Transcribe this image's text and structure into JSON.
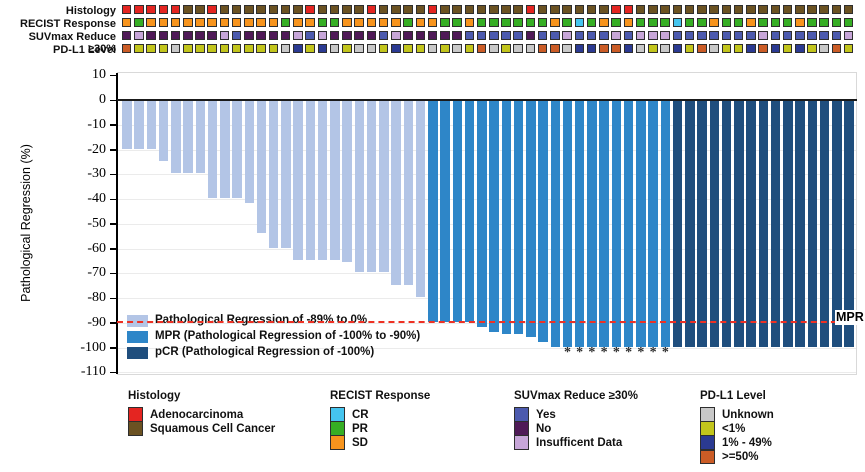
{
  "tracks": {
    "rows": [
      {
        "label": "Histology",
        "cells": [
          "A",
          "A",
          "A",
          "A",
          "A",
          "S",
          "S",
          "A",
          "S",
          "S",
          "S",
          "S",
          "S",
          "S",
          "S",
          "A",
          "S",
          "S",
          "S",
          "S",
          "A",
          "S",
          "S",
          "S",
          "S",
          "A",
          "S",
          "S",
          "S",
          "S",
          "S",
          "S",
          "S",
          "A",
          "S",
          "S",
          "S",
          "S",
          "S",
          "S",
          "A",
          "A",
          "S",
          "S",
          "S",
          "S",
          "S",
          "S",
          "S",
          "S",
          "S",
          "S",
          "S",
          "S",
          "S",
          "S",
          "S",
          "S",
          "S",
          "S"
        ]
      },
      {
        "label": "RECIST Response",
        "cells": [
          "SD",
          "PR",
          "SD",
          "SD",
          "SD",
          "SD",
          "SD",
          "SD",
          "SD",
          "SD",
          "SD",
          "SD",
          "SD",
          "PR",
          "SD",
          "SD",
          "PR",
          "PR",
          "SD",
          "SD",
          "SD",
          "SD",
          "SD",
          "PR",
          "SD",
          "SD",
          "PR",
          "PR",
          "SD",
          "PR",
          "PR",
          "PR",
          "PR",
          "PR",
          "PR",
          "SD",
          "PR",
          "CR",
          "PR",
          "SD",
          "PR",
          "SD",
          "PR",
          "PR",
          "PR",
          "CR",
          "PR",
          "PR",
          "SD",
          "PR",
          "PR",
          "SD",
          "PR",
          "PR",
          "PR",
          "SD",
          "PR",
          "PR",
          "PR",
          "PR"
        ]
      },
      {
        "label": "SUVmax Reduce ≥30%",
        "cells": [
          "N",
          "I",
          "N",
          "N",
          "N",
          "N",
          "N",
          "N",
          "I",
          "Y",
          "N",
          "N",
          "N",
          "N",
          "I",
          "Y",
          "I",
          "N",
          "N",
          "N",
          "N",
          "Y",
          "I",
          "N",
          "N",
          "N",
          "N",
          "N",
          "Y",
          "Y",
          "Y",
          "Y",
          "Y",
          "N",
          "Y",
          "Y",
          "I",
          "Y",
          "Y",
          "Y",
          "I",
          "Y",
          "I",
          "I",
          "I",
          "Y",
          "Y",
          "Y",
          "Y",
          "Y",
          "Y",
          "Y",
          "I",
          "Y",
          "Y",
          "Y",
          "Y",
          "Y",
          "Y",
          "I"
        ]
      },
      {
        "label": "PD-L1 Level",
        "cells": [
          "H",
          "L",
          "L",
          "L",
          "U",
          "L",
          "L",
          "L",
          "L",
          "L",
          "L",
          "L",
          "L",
          "U",
          "B",
          "L",
          "B",
          "U",
          "L",
          "U",
          "U",
          "L",
          "B",
          "L",
          "L",
          "U",
          "L",
          "U",
          "L",
          "H",
          "U",
          "L",
          "U",
          "U",
          "H",
          "H",
          "U",
          "B",
          "B",
          "H",
          "H",
          "B",
          "U",
          "L",
          "U",
          "B",
          "L",
          "H",
          "U",
          "L",
          "L",
          "B",
          "H",
          "B",
          "L",
          "B",
          "L",
          "U",
          "H",
          "L"
        ]
      }
    ],
    "palette": {
      "A": "#e42521",
      "S": "#6b5222",
      "CR": "#45c5ef",
      "PR": "#36ae24",
      "SD": "#f7941d",
      "Y": "#4c5aae",
      "N": "#4f1a57",
      "I": "#c7a6d8",
      "U": "#c8c8c8",
      "L": "#c2c51c",
      "B": "#2b3a92",
      "H": "#cb5c26"
    }
  },
  "chart_data": {
    "type": "bar",
    "title": "",
    "xlabel": "",
    "ylabel": "Pathological Regression (%)",
    "ylim": [
      -110,
      10
    ],
    "yticks": [
      10,
      0,
      -10,
      -20,
      -30,
      -40,
      -50,
      -60,
      -70,
      -80,
      -90,
      -100,
      -110
    ],
    "grid": "horizontal",
    "values": [
      -20,
      -20,
      -20,
      -25,
      -30,
      -30,
      -30,
      -40,
      -40,
      -40,
      -42,
      -54,
      -60,
      -60,
      -65,
      -65,
      -65,
      -65,
      -66,
      -70,
      -70,
      -70,
      -75,
      -75,
      -80,
      -90,
      -90,
      -90,
      -90,
      -92,
      -94,
      -95,
      -95,
      -96,
      -98,
      -100,
      -100,
      -100,
      -100,
      -100,
      -100,
      -100,
      -100,
      -100,
      -100,
      -100,
      -100,
      -100,
      -100,
      -100,
      -100,
      -100,
      -100,
      -100,
      -100,
      -100,
      -100,
      -100,
      -100,
      -100
    ],
    "bar_groups": {
      "reg": [
        1,
        25
      ],
      "mpr": [
        26,
        45
      ],
      "pcr": [
        46,
        60
      ]
    },
    "colors": {
      "reg": "#b3c5e6",
      "mpr": "#2e86c8",
      "pcr": "#1f4e7d"
    },
    "asterisk_bars": [
      37,
      38,
      39,
      40,
      41,
      42,
      43,
      44,
      45
    ],
    "asterisk_symbol": "*",
    "reference_line": {
      "y": -90,
      "label": "MPR",
      "color": "#ee3124",
      "style": "dashed"
    }
  },
  "plot_legend": [
    {
      "key": "reg",
      "label": "Pathological Regression of -89% to 0%"
    },
    {
      "key": "mpr",
      "label": "MPR (Pathological Regression of -100% to -90%)"
    },
    {
      "key": "pcr",
      "label": "pCR (Pathological Regression of -100%)"
    }
  ],
  "bottom_legends": [
    {
      "title": "Histology",
      "items": [
        {
          "key": "A",
          "label": "Adenocarcinoma"
        },
        {
          "key": "S",
          "label": "Squamous Cell Cancer"
        }
      ]
    },
    {
      "title": "RECIST Response",
      "items": [
        {
          "key": "CR",
          "label": "CR"
        },
        {
          "key": "PR",
          "label": "PR"
        },
        {
          "key": "SD",
          "label": "SD"
        }
      ]
    },
    {
      "title": "SUVmax Reduce ≥30%",
      "items": [
        {
          "key": "Y",
          "label": "Yes"
        },
        {
          "key": "N",
          "label": "No"
        },
        {
          "key": "I",
          "label": "Insufficent Data"
        }
      ]
    },
    {
      "title": "PD-L1 Level",
      "items": [
        {
          "key": "U",
          "label": "Unknown"
        },
        {
          "key": "L",
          "label": "<1%"
        },
        {
          "key": "B",
          "label": "1% - 49%"
        },
        {
          "key": "H",
          "label": ">=50%"
        }
      ]
    }
  ],
  "mpr_label": "MPR"
}
